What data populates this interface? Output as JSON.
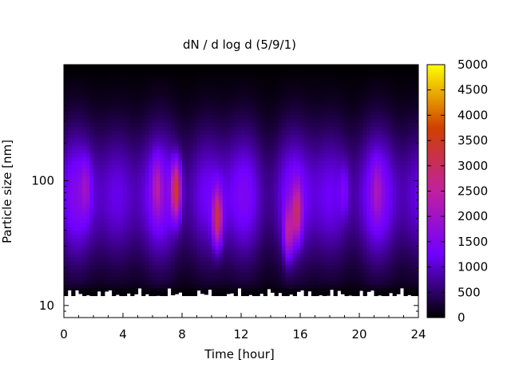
{
  "chart_data": {
    "type": "heatmap",
    "title": "dN / d log d (5/9/1)",
    "xlabel": "Time [hour]",
    "ylabel": "Particle size [nm]",
    "xlim": [
      0,
      24
    ],
    "ylim": [
      8,
      850
    ],
    "yscale": "log",
    "x_ticks": [
      "0",
      "4",
      "8",
      "12",
      "16",
      "20",
      "24"
    ],
    "y_ticks": [
      "10",
      "100"
    ],
    "colorbar": {
      "range": [
        0,
        5000
      ],
      "ticks": [
        "0",
        "500",
        "1000",
        "1500",
        "2000",
        "2500",
        "3000",
        "3500",
        "4000",
        "4500",
        "5000"
      ],
      "colors": [
        "#000000",
        "#7000ff",
        "#c020a0",
        "#d04000",
        "#ffff00"
      ]
    },
    "y_size_range": [
      12,
      850
    ],
    "peaks": [
      {
        "time": 1.5,
        "size": 90,
        "value": 2200
      },
      {
        "time": 6.3,
        "size": 90,
        "value": 2400
      },
      {
        "time": 7.6,
        "size": 85,
        "value": 4100
      },
      {
        "time": 10.4,
        "size": 50,
        "value": 3700
      },
      {
        "time": 15.2,
        "size": 38,
        "value": 3000
      },
      {
        "time": 15.8,
        "size": 55,
        "value": 3200
      },
      {
        "time": 19.0,
        "size": 85,
        "value": 2000
      },
      {
        "time": 21.2,
        "size": 85,
        "value": 2100
      }
    ]
  }
}
